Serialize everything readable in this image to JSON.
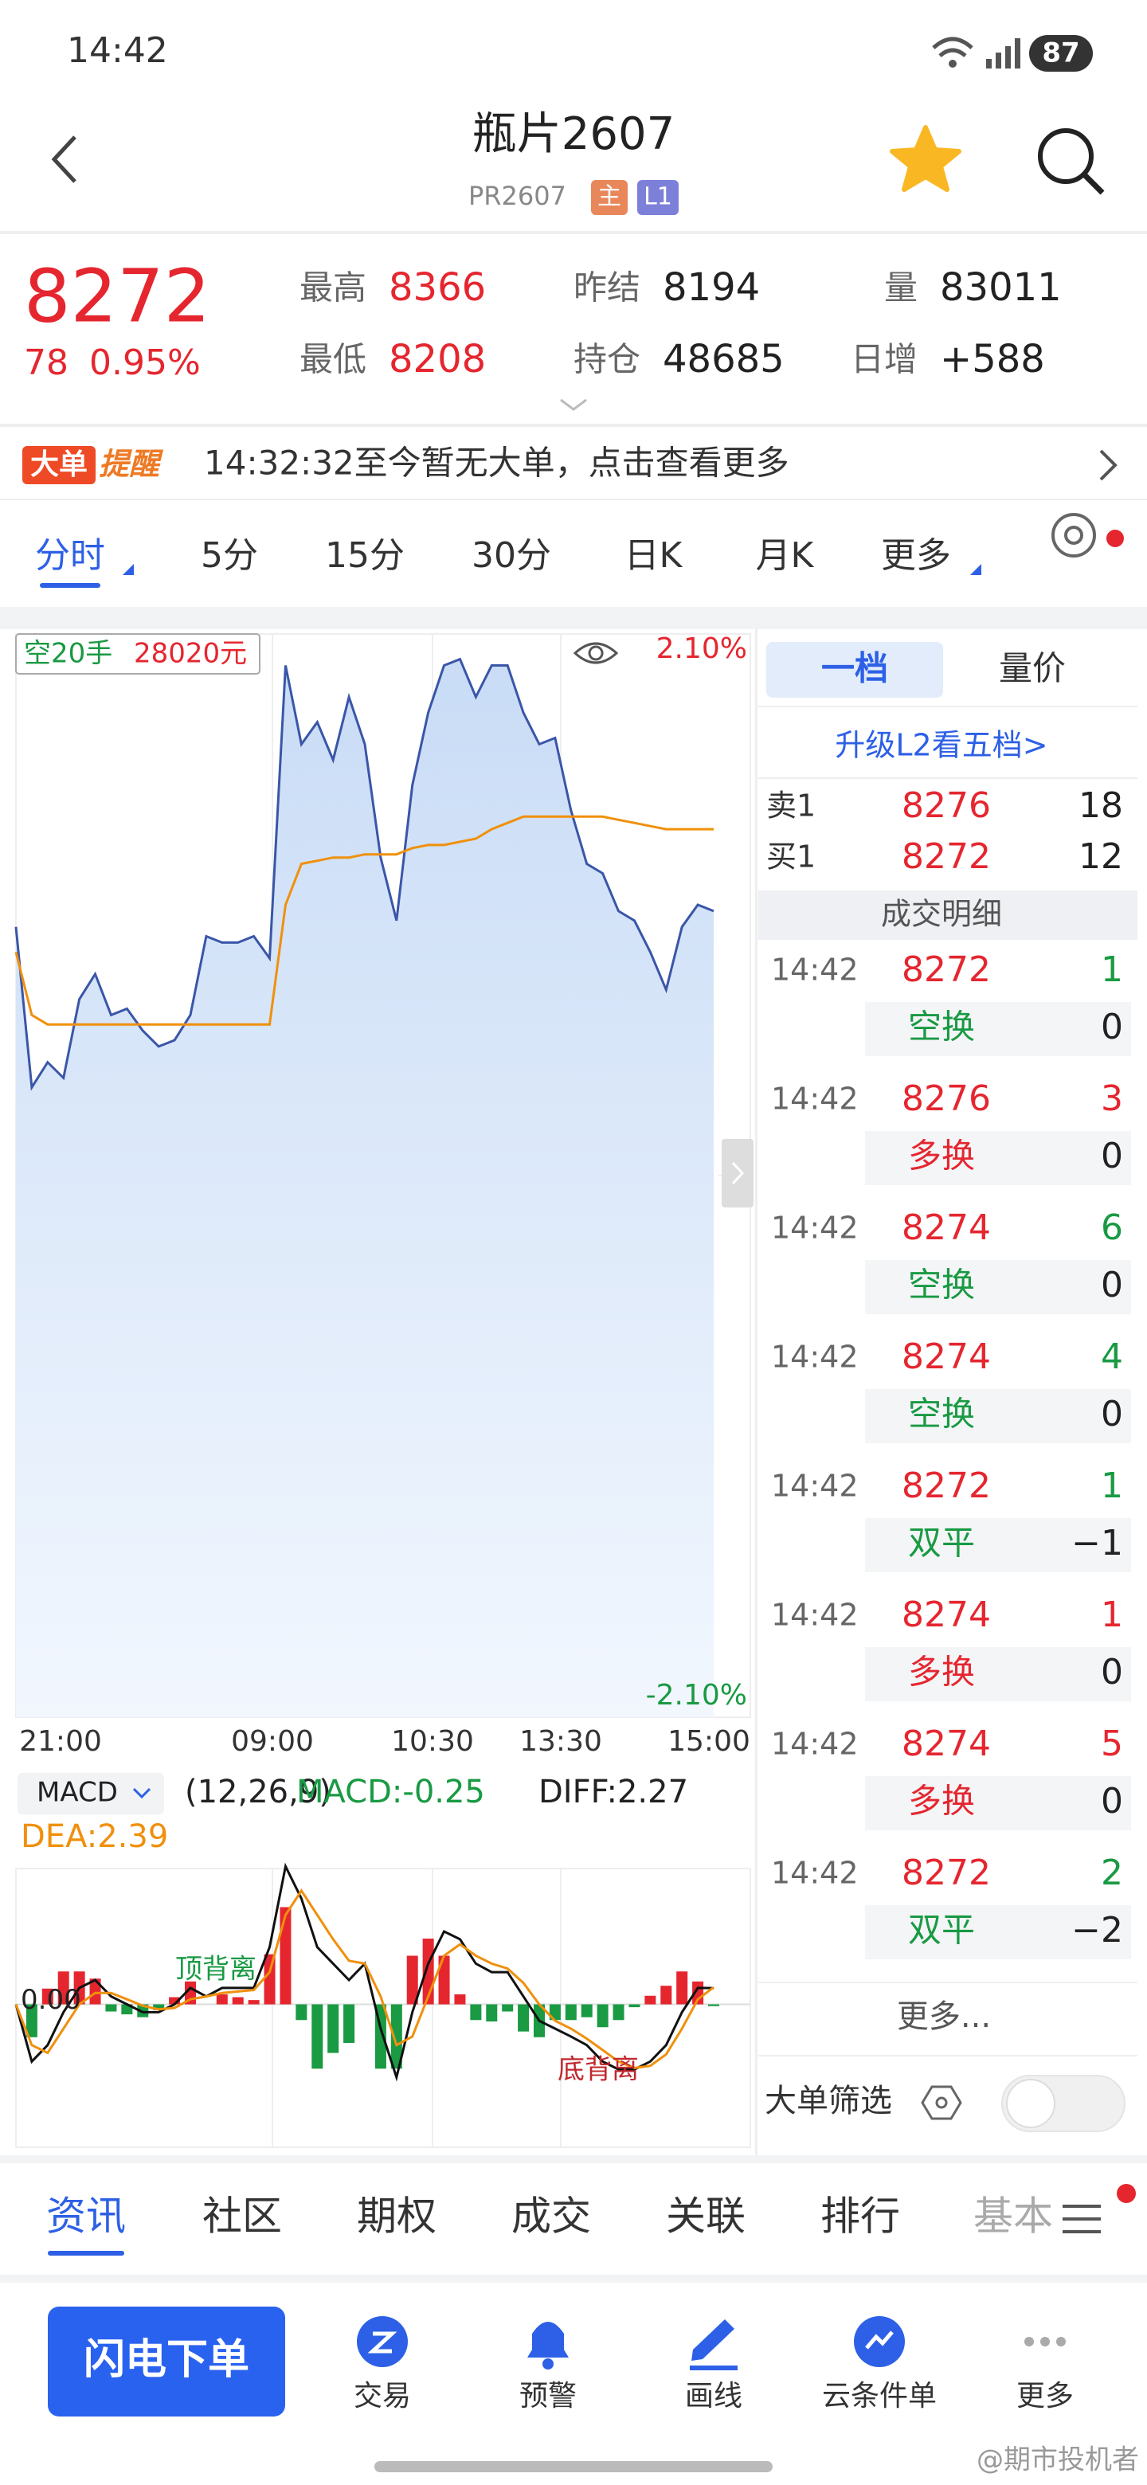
{
  "status": {
    "time": "14:42",
    "battery": "87"
  },
  "header": {
    "title": "瓶片2607",
    "code": "PR2607",
    "badges": [
      "主",
      "L1"
    ]
  },
  "quote": {
    "price": "8272",
    "change": "78",
    "change_pct": "0.95%",
    "stats": [
      {
        "label": "最高",
        "value": "8366",
        "color": "#e5262f"
      },
      {
        "label": "最低",
        "value": "8208",
        "color": "#e5262f"
      },
      {
        "label": "昨结",
        "value": "8194",
        "color": "#222222"
      },
      {
        "label": "持仓",
        "value": "48685",
        "color": "#222222"
      },
      {
        "label": "量",
        "value": "83011",
        "color": "#222222"
      },
      {
        "label": "日增",
        "value": "+588",
        "color": "#222222"
      }
    ]
  },
  "big_order": {
    "logo_a": "大单",
    "logo_b": "提醒",
    "text": "14:32:32至今暂无大单，点击查看更多"
  },
  "period_tabs": {
    "items": [
      "分时",
      "5分",
      "15分",
      "30分",
      "日K",
      "月K",
      "更多"
    ],
    "selected": 0
  },
  "chart_data": [
    {
      "type": "line",
      "overlay_a": "空20手",
      "overlay_b": "28020元",
      "xlabels": [
        "21:00",
        "09:00",
        "10:30",
        "13:30",
        "15:00"
      ],
      "ylim": [
        8022,
        8366
      ],
      "yticks": [
        8194,
        8022
      ],
      "right_labels": [
        "2.10%",
        "-2.10%"
      ],
      "series": [
        {
          "color": "#3a56a8",
          "values": [
            8273,
            8222,
            8230,
            8225,
            8250,
            8258,
            8245,
            8247,
            8240,
            8235,
            8237,
            8245,
            8270,
            8268,
            8268,
            8270,
            8263,
            8356,
            8331,
            8338,
            8326,
            8346,
            8331,
            8295,
            8275,
            8318,
            8341,
            8356,
            8358,
            8346,
            8356,
            8356,
            8341,
            8331,
            8333,
            8310,
            8293,
            8290,
            8278,
            8275,
            8265,
            8253,
            8273,
            8280,
            8278
          ]
        },
        {
          "color": "#f0900c",
          "values": [
            8265,
            8245,
            8242,
            8242,
            8242,
            8242,
            8242,
            8242,
            8242,
            8242,
            8242,
            8242,
            8242,
            8242,
            8242,
            8242,
            8242,
            8280,
            8293,
            8294,
            8295,
            8295,
            8296,
            8296,
            8296,
            8298,
            8299,
            8299,
            8300,
            8301,
            8304,
            8306,
            8308,
            8308,
            8308,
            8308,
            8308,
            8308,
            8307,
            8306,
            8305,
            8304,
            8304,
            8304,
            8304
          ]
        }
      ]
    },
    {
      "type": "macd",
      "name": "MACD",
      "params": "(12,26,9)",
      "macd_label": "MACD:-0.25",
      "diff_label": "DIFF:2.27",
      "dea_label": "DEA:2.39",
      "annotations": [
        "顶背离",
        "底背离"
      ],
      "ylim": [
        -20,
        19
      ],
      "yticks": [
        {
          "value": 0,
          "label": "0.00"
        }
      ],
      "values": [
        0,
        -4.6,
        2.2,
        4.6,
        4.6,
        3.6,
        -1.0,
        -1.4,
        -1.8,
        -0.8,
        1.0,
        3.2,
        0,
        1.4,
        1.0,
        0.6,
        7.0,
        13.6,
        -2.2,
        -9.0,
        -6.8,
        -5.4,
        0,
        -9.0,
        -9.0,
        6.8,
        9.2,
        6.8,
        1.4,
        -2.2,
        -2.4,
        -1.0,
        -3.8,
        -4.6,
        -2.2,
        -2.2,
        -1.8,
        -3.2,
        -2.2,
        -0.4,
        1.2,
        2.6,
        4.6,
        3.2,
        -0.25
      ],
      "diff": {
        "color": "#111111",
        "values": [
          0,
          -8.0,
          -5.7,
          -1.1,
          2.3,
          3.4,
          1.1,
          0,
          -1.1,
          -1.1,
          0,
          2.3,
          1.1,
          2.3,
          2.3,
          2.3,
          8.0,
          19.3,
          14.8,
          8.0,
          5.7,
          3.4,
          5.7,
          -3.4,
          -10.2,
          -1.1,
          5.7,
          10.2,
          9.1,
          5.7,
          4.5,
          4.5,
          1.1,
          -2.3,
          -3.4,
          -4.5,
          -5.7,
          -8.0,
          -9.1,
          -9.1,
          -8.0,
          -5.7,
          -1.1,
          2.3,
          2.27
        ]
      },
      "dea": {
        "color": "#f0900c",
        "values": [
          0,
          -5.7,
          -6.8,
          -3.4,
          0,
          1.6,
          1.6,
          0.7,
          -0.2,
          -0.7,
          -0.5,
          0.7,
          1.1,
          1.6,
          1.8,
          2.0,
          4.5,
          12.5,
          15.9,
          12.5,
          9.1,
          6.1,
          5.7,
          1.1,
          -5.7,
          -4.5,
          1.1,
          6.8,
          8.4,
          6.8,
          5.7,
          5.0,
          3.0,
          0,
          -2.3,
          -3.4,
          -4.8,
          -6.4,
          -8.0,
          -8.9,
          -8.6,
          -7.0,
          -3.4,
          0.7,
          2.39
        ]
      }
    }
  ],
  "order_book": {
    "tabs": [
      "一档",
      "量价"
    ],
    "upgrade": "升级L2看五档>",
    "levels": [
      {
        "label": "卖1",
        "price": "8276",
        "volume": "18"
      },
      {
        "label": "买1",
        "price": "8272",
        "volume": "12"
      }
    ],
    "trades_title": "成交明细",
    "trades": [
      {
        "time": "14:42",
        "price": "8272",
        "volume": "1",
        "type": "空换",
        "delta": "0",
        "color": "#199a43"
      },
      {
        "time": "14:42",
        "price": "8276",
        "volume": "3",
        "type": "多换",
        "delta": "0",
        "color": "#e5262f"
      },
      {
        "time": "14:42",
        "price": "8274",
        "volume": "6",
        "type": "空换",
        "delta": "0",
        "color": "#199a43"
      },
      {
        "time": "14:42",
        "price": "8274",
        "volume": "4",
        "type": "空换",
        "delta": "0",
        "color": "#199a43"
      },
      {
        "time": "14:42",
        "price": "8272",
        "volume": "1",
        "type": "双平",
        "delta": "−1",
        "color": "#199a43"
      },
      {
        "time": "14:42",
        "price": "8274",
        "volume": "1",
        "type": "多换",
        "delta": "0",
        "color": "#e5262f"
      },
      {
        "time": "14:42",
        "price": "8274",
        "volume": "5",
        "type": "多换",
        "delta": "0",
        "color": "#e5262f"
      },
      {
        "time": "14:42",
        "price": "8272",
        "volume": "2",
        "type": "双平",
        "delta": "−2",
        "color": "#199a43"
      }
    ],
    "more": "更多...",
    "filter": "大单筛选"
  },
  "info_tabs": {
    "items": [
      "资讯",
      "社区",
      "期权",
      "成交",
      "关联",
      "排行",
      "基本"
    ],
    "selected": 0
  },
  "toolbar": {
    "button": "闪电下单",
    "items": [
      "交易",
      "预警",
      "画线",
      "云条件单",
      "更多"
    ]
  },
  "watermark": "@期市投机者"
}
